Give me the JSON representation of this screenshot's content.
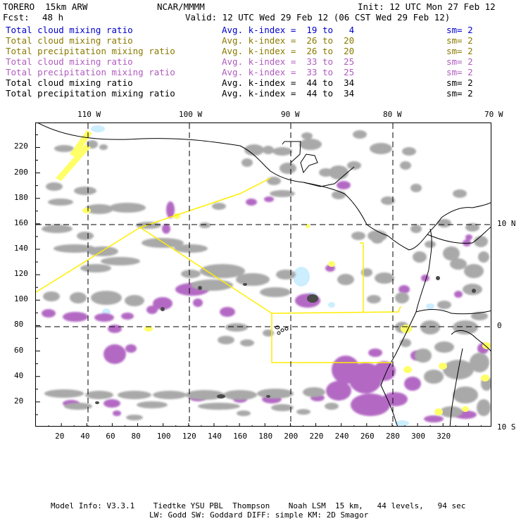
{
  "header": {
    "model": "TORERO  15km ARW",
    "center": "NCAR/MMMM",
    "init": "Init: 12 UTC Mon 27 Feb 12",
    "fcst_label": "Fcst:",
    "fcst_value": "48 h",
    "valid": "Valid: 12 UTC Wed 29 Feb 12 (06 CST Wed 29 Feb 12)"
  },
  "legend_rows": [
    {
      "field": "Total cloud mixing ratio",
      "index": "Avg. k-index =  19 to   4",
      "sm": "sm= 2",
      "color": "#0000cc"
    },
    {
      "field": "Total cloud mixing ratio",
      "index": "Avg. k-index =  26 to  20",
      "sm": "sm= 2",
      "color": "#8a7a00"
    },
    {
      "field": "Total precipitation mixing ratio",
      "index": "Avg. k-index =  26 to  20",
      "sm": "sm= 2",
      "color": "#8a7a00"
    },
    {
      "field": "Total cloud mixing ratio",
      "index": "Avg. k-index =  33 to  25",
      "sm": "sm= 2",
      "color": "#b05cc0"
    },
    {
      "field": "Total precipitation mixing ratio",
      "index": "Avg. k-index =  33 to  25",
      "sm": "sm= 2",
      "color": "#b05cc0"
    },
    {
      "field": "Total cloud mixing ratio",
      "index": "Avg. k-index =  44 to  34",
      "sm": "sm= 2",
      "color": "#000000"
    },
    {
      "field": "Total precipitation mixing ratio",
      "index": "Avg. k-index =  44 to  34",
      "sm": "sm= 2",
      "color": "#000000"
    }
  ],
  "axes": {
    "top_lon_labels": [
      "110 W",
      "100 W",
      "90 W",
      "80 W",
      "70 W"
    ],
    "right_lat_labels": [
      "10 N",
      "0",
      "10 S"
    ],
    "left_ticks": [
      "220",
      "200",
      "180",
      "160",
      "140",
      "120",
      "100",
      "80",
      "60",
      "40",
      "20"
    ],
    "bottom_ticks": [
      "20",
      "40",
      "60",
      "80",
      "100",
      "120",
      "140",
      "160",
      "180",
      "200",
      "220",
      "240",
      "260",
      "280",
      "300",
      "320"
    ]
  },
  "footer": {
    "line1": "Model Info: V3.3.1    Tiedtke YSU PBL  Thompson    Noah LSM  15 km,   44 levels,   94 sec",
    "line2": "LW: Godd SW: Goddard DIFF: simple KM: 2D Smagor"
  },
  "colors": {
    "cloud_gray": "#a9a9a9",
    "dark_core": "#4a4a4a",
    "purple": "#b369c4",
    "yellow": "#ffff66",
    "light_blue": "#cceeff",
    "box_line": "#ffee00"
  }
}
